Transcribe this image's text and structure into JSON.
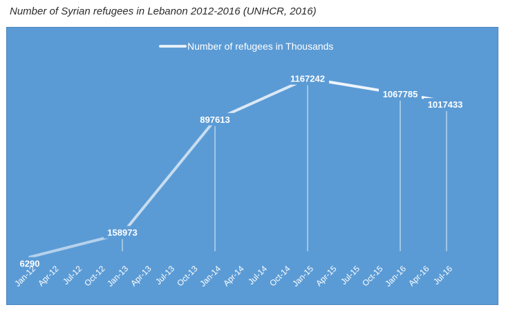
{
  "chart_data": {
    "type": "line",
    "title": "Number of Syrian refugees in Lebanon 2012-2016 (UNHCR, 2016)",
    "legend": {
      "position": "top",
      "entries": [
        "Number of refugees in Thousands"
      ]
    },
    "x_tick_labels": [
      "Jan-12",
      "Apr-12",
      "Jul-12",
      "Oct-12",
      "Jan-13",
      "Apr-13",
      "Jul-13",
      "Oct-13",
      "Jan-14",
      "Apr-14",
      "Jul-14",
      "Oct-14",
      "Jan-15",
      "Apr-15",
      "Jul-15",
      "Oct-15",
      "Jan-16",
      "Apr-16",
      "Jul-16"
    ],
    "series": [
      {
        "name": "Number of refugees in Thousands",
        "points": [
          {
            "x": "Jan-12",
            "y": 6290,
            "label": "6290"
          },
          {
            "x": "Jan-13",
            "y": 158973,
            "label": "158973"
          },
          {
            "x": "Jan-14",
            "y": 897613,
            "label": "897613"
          },
          {
            "x": "Jan-15",
            "y": 1167242,
            "label": "1167242"
          },
          {
            "x": "Jan-16",
            "y": 1067785,
            "label": "1067785"
          },
          {
            "x": "Jul-16",
            "y": 1017433,
            "label": "1017433"
          }
        ]
      }
    ],
    "ylim": [
      0,
      1300000
    ],
    "y_axis_visible": false,
    "grid": false,
    "colors": {
      "background": "#5b9bd5",
      "line": "#ffffff",
      "text": "#ffffff"
    }
  }
}
